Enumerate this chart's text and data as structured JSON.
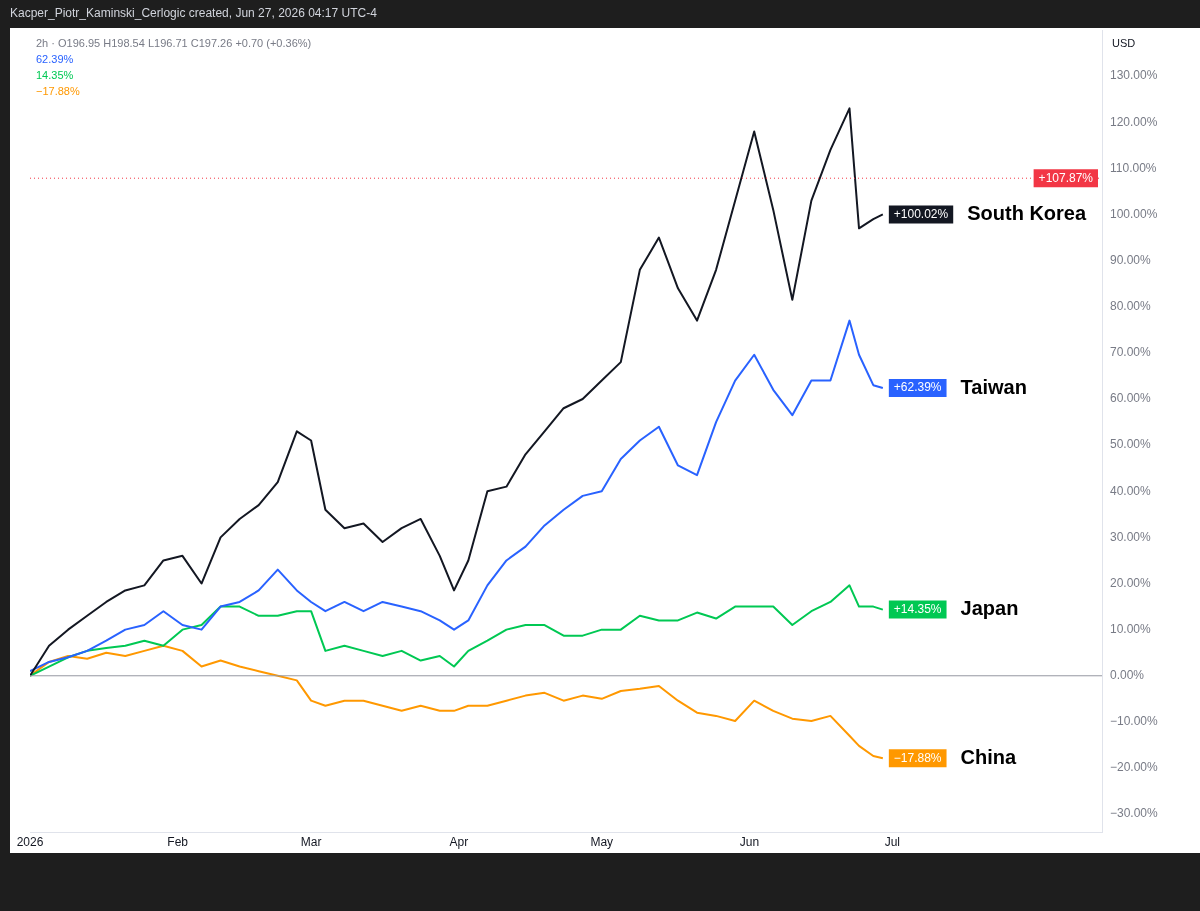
{
  "chart_data": {
    "type": "line",
    "title": "Kacper_Piotr_Kaminski_Cerlogic created, Jun 27, 2026 04:17 UTC-4",
    "x": [
      "2026-01-01",
      "2026-01-05",
      "2026-01-09",
      "2026-01-13",
      "2026-01-17",
      "2026-01-21",
      "2026-01-25",
      "2026-01-29",
      "2026-02-02",
      "2026-02-06",
      "2026-02-10",
      "2026-02-14",
      "2026-02-18",
      "2026-02-22",
      "2026-02-26",
      "2026-03-01",
      "2026-03-04",
      "2026-03-08",
      "2026-03-12",
      "2026-03-16",
      "2026-03-20",
      "2026-03-24",
      "2026-03-28",
      "2026-03-31",
      "2026-04-03",
      "2026-04-07",
      "2026-04-11",
      "2026-04-15",
      "2026-04-19",
      "2026-04-23",
      "2026-04-27",
      "2026-05-01",
      "2026-05-05",
      "2026-05-09",
      "2026-05-13",
      "2026-05-17",
      "2026-05-21",
      "2026-05-25",
      "2026-05-29",
      "2026-06-02",
      "2026-06-06",
      "2026-06-10",
      "2026-06-14",
      "2026-06-18",
      "2026-06-22",
      "2026-06-24",
      "2026-06-27",
      "2026-06-29"
    ],
    "xlim": [
      "2026-01-01",
      "2026-08-14"
    ],
    "xticks": [
      {
        "value": "2026-01-01",
        "label": "2026"
      },
      {
        "value": "2026-02-01",
        "label": "Feb"
      },
      {
        "value": "2026-03-01",
        "label": "Mar"
      },
      {
        "value": "2026-04-01",
        "label": "Apr"
      },
      {
        "value": "2026-05-01",
        "label": "May"
      },
      {
        "value": "2026-06-01",
        "label": "Jun"
      },
      {
        "value": "2026-07-01",
        "label": "Jul"
      }
    ],
    "ylim": [
      -34,
      140
    ],
    "legend": "right",
    "yticks": [
      {
        "value": -30,
        "label": "−30.00%"
      },
      {
        "value": -20,
        "label": "−20.00%"
      },
      {
        "value": -10,
        "label": "−10.00%"
      },
      {
        "value": 0,
        "label": "0.00%"
      },
      {
        "value": 10,
        "label": "10.00%"
      },
      {
        "value": 20,
        "label": "20.00%"
      },
      {
        "value": 30,
        "label": "30.00%"
      },
      {
        "value": 40,
        "label": "40.00%"
      },
      {
        "value": 50,
        "label": "50.00%"
      },
      {
        "value": 60,
        "label": "60.00%"
      },
      {
        "value": 70,
        "label": "70.00%"
      },
      {
        "value": 80,
        "label": "80.00%"
      },
      {
        "value": 90,
        "label": "90.00%"
      },
      {
        "value": 100,
        "label": "100.00%"
      },
      {
        "value": 110,
        "label": "110.00%"
      },
      {
        "value": 120,
        "label": "120.00%"
      },
      {
        "value": 130,
        "label": "130.00%"
      }
    ],
    "series": [
      {
        "name": "South Korea",
        "color": "#131722",
        "values": [
          0,
          6.5,
          10,
          13,
          16,
          18.5,
          19.6,
          25,
          26,
          20,
          30,
          34,
          37,
          42,
          53,
          51,
          36,
          32,
          33,
          29,
          32,
          34,
          26,
          18.5,
          25,
          40,
          41,
          48,
          53,
          58,
          60,
          64,
          68,
          88,
          95,
          84,
          77,
          88,
          103,
          118,
          101,
          81.5,
          103,
          114,
          123,
          97,
          99,
          100.02
        ],
        "value_labels": [
          null,
          null,
          null,
          null,
          null,
          null,
          null,
          null,
          null,
          null,
          null,
          null,
          null,
          null,
          null,
          null,
          null,
          null,
          null,
          null,
          null,
          null,
          null,
          null,
          null,
          null,
          null,
          null,
          null,
          null,
          null,
          null,
          null,
          null,
          null,
          null,
          null,
          null,
          null,
          null,
          null,
          null,
          null,
          null,
          null,
          null,
          null,
          "+100.02%"
        ]
      },
      {
        "name": "Taiwan",
        "color": "#2962ff",
        "values": [
          1,
          3,
          4,
          5.4,
          7.6,
          10,
          11,
          14,
          11,
          10,
          15,
          16,
          18.5,
          23,
          18.5,
          16,
          14,
          16,
          14,
          16,
          15,
          14,
          12,
          10,
          12,
          19.6,
          25,
          28,
          32.6,
          36,
          39,
          40,
          47,
          51,
          54,
          45.6,
          43.5,
          55,
          64,
          69.6,
          62,
          56.5,
          64,
          64,
          77,
          69.6,
          63,
          62.39
        ],
        "value_labels": [
          null,
          null,
          null,
          null,
          null,
          null,
          null,
          null,
          null,
          null,
          null,
          null,
          null,
          null,
          null,
          null,
          null,
          null,
          null,
          null,
          null,
          null,
          null,
          null,
          null,
          null,
          null,
          null,
          null,
          null,
          null,
          null,
          null,
          null,
          null,
          null,
          null,
          null,
          null,
          null,
          null,
          null,
          null,
          null,
          null,
          null,
          null,
          "+62.39%"
        ]
      },
      {
        "name": "Japan",
        "color": "#00c853",
        "values": [
          0,
          2,
          4,
          5.4,
          6,
          6.5,
          7.6,
          6.5,
          10,
          11,
          15,
          15,
          13,
          13,
          14,
          14,
          5.4,
          6.5,
          5.4,
          4.3,
          5.4,
          3.3,
          4.3,
          2,
          5.4,
          7.6,
          10,
          11,
          11,
          8.7,
          8.7,
          10,
          10,
          13,
          12,
          12,
          13.7,
          12.4,
          15,
          15,
          15,
          11,
          14,
          16,
          19.6,
          15,
          15,
          14.35
        ],
        "value_labels": [
          null,
          null,
          null,
          null,
          null,
          null,
          null,
          null,
          null,
          null,
          null,
          null,
          null,
          null,
          null,
          null,
          null,
          null,
          null,
          null,
          null,
          null,
          null,
          null,
          null,
          null,
          null,
          null,
          null,
          null,
          null,
          null,
          null,
          null,
          null,
          null,
          null,
          null,
          null,
          null,
          null,
          null,
          null,
          null,
          null,
          null,
          null,
          "+14.35%"
        ]
      },
      {
        "name": "China",
        "color": "#ff9800",
        "values": [
          0,
          3,
          4.3,
          3.7,
          5,
          4.3,
          5.4,
          6.5,
          5.4,
          2,
          3.3,
          2,
          1,
          0,
          -1,
          -5.4,
          -6.5,
          -5.4,
          -5.4,
          -6.5,
          -7.6,
          -6.5,
          -7.6,
          -7.6,
          -6.5,
          -6.5,
          -5.4,
          -4.3,
          -3.7,
          -5.4,
          -4.3,
          -5,
          -3.3,
          -2.8,
          -2.2,
          -5.4,
          -8,
          -8.7,
          -9.8,
          -5.4,
          -7.6,
          -9.3,
          -9.8,
          -8.7,
          -13,
          -15.2,
          -17.4,
          -17.88
        ],
        "value_labels": [
          null,
          null,
          null,
          null,
          null,
          null,
          null,
          null,
          null,
          null,
          null,
          null,
          null,
          null,
          null,
          null,
          null,
          null,
          null,
          null,
          null,
          null,
          null,
          null,
          null,
          null,
          null,
          null,
          null,
          null,
          null,
          null,
          null,
          null,
          null,
          null,
          null,
          null,
          null,
          null,
          null,
          null,
          null,
          null,
          null,
          null,
          null,
          "−17.88%"
        ]
      }
    ],
    "ref_lines": [
      {
        "axis": "y",
        "value": 0,
        "color": "#9598a1",
        "line_style": "solid"
      },
      {
        "axis": "y",
        "value": 107.87,
        "label": "+107.87%",
        "color": "#f23645",
        "line_style": "dotted"
      }
    ],
    "annotations": [
      "2h · O196.95 H198.54 L196.71 C197.26 +0.70 (+0.36%)",
      "62.39%",
      "14.35%",
      "−17.88%",
      "USD"
    ]
  }
}
